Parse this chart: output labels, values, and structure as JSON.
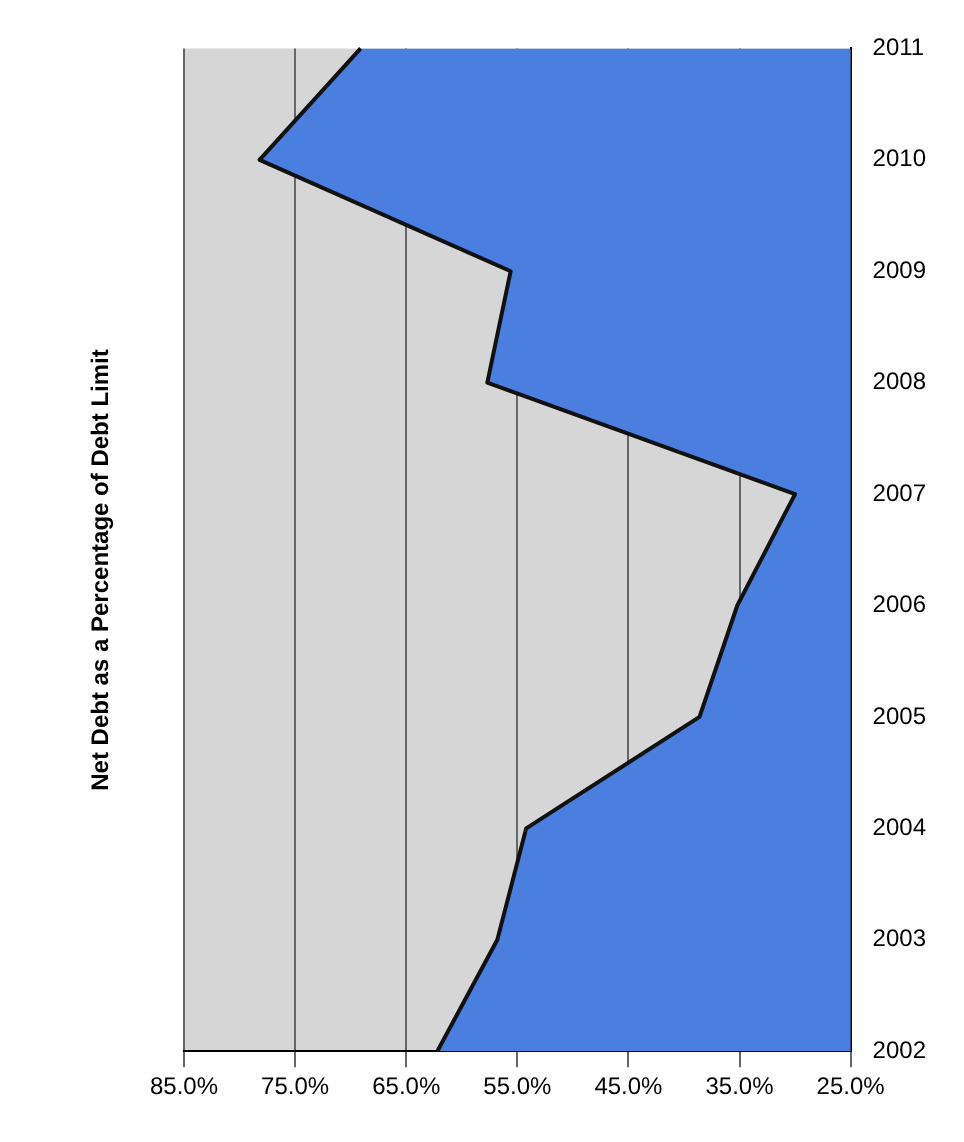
{
  "chart_data": {
    "type": "area",
    "orientation": "horizontal",
    "title": "Net Debt as a Percentage of Debt Limit",
    "categories": [
      "2011",
      "2010",
      "2009",
      "2008",
      "2007",
      "2006",
      "2005",
      "2004",
      "2003",
      "2002"
    ],
    "series": [
      {
        "color": "#4a7fe0",
        "values": [
          69.1,
          78.2,
          55.6,
          57.7,
          30.0,
          35.2,
          38.6,
          54.2,
          56.8,
          62.2
        ]
      }
    ],
    "xlim": [
      85,
      25
    ],
    "xticks": [
      {
        "value": 85,
        "label": "85.0%"
      },
      {
        "value": 75,
        "label": "75.0%"
      },
      {
        "value": 65,
        "label": "65.0%"
      },
      {
        "value": 55,
        "label": "55.0%"
      },
      {
        "value": 45,
        "label": "45.0%"
      },
      {
        "value": 35,
        "label": "35.0%"
      },
      {
        "value": 25,
        "label": "25.0%"
      }
    ],
    "grid": "x",
    "legend": false
  }
}
